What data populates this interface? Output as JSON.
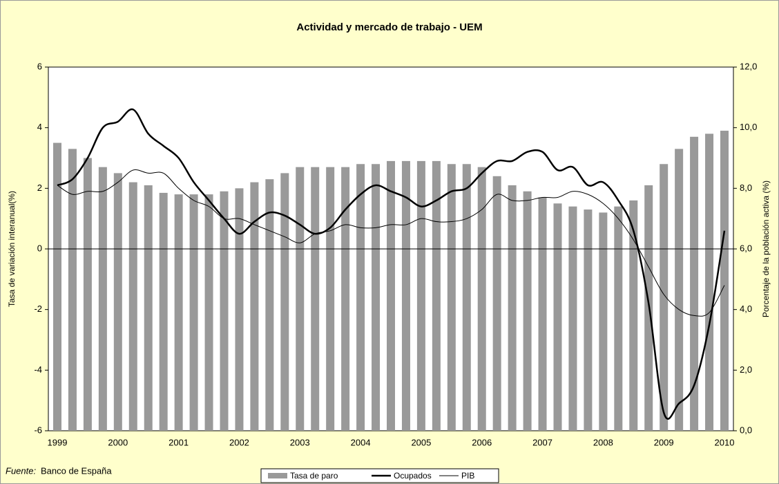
{
  "chart_data": {
    "type": "bar-line",
    "title": "Actividad y mercado de trabajo - UEM",
    "y_label": "Tasa de variación interanual(%)",
    "y2_label": "Porcentaje de la población activa (%)",
    "source_label": "Fuente:",
    "source": "Banco de España",
    "categories": [
      "1999",
      null,
      null,
      null,
      "2000",
      null,
      null,
      null,
      "2001",
      null,
      null,
      null,
      "2002",
      null,
      null,
      null,
      "2003",
      null,
      null,
      null,
      "2004",
      null,
      null,
      null,
      "2005",
      null,
      null,
      null,
      "2006",
      null,
      null,
      null,
      "2007",
      null,
      null,
      null,
      "2008",
      null,
      null,
      null,
      "2009",
      null,
      null,
      null,
      "2010"
    ],
    "ylim": [
      -6,
      6
    ],
    "yticks": [
      -6,
      -4,
      -2,
      0,
      2,
      4,
      6
    ],
    "y2lim": [
      0,
      12
    ],
    "y2ticks": [
      {
        "value": 0,
        "label": "0,0"
      },
      {
        "value": 2,
        "label": "2,0"
      },
      {
        "value": 4,
        "label": "4,0"
      },
      {
        "value": 6,
        "label": "6,0"
      },
      {
        "value": 8,
        "label": "8,0"
      },
      {
        "value": 10,
        "label": "10,0"
      },
      {
        "value": 12,
        "label": "12,0"
      }
    ],
    "series": [
      {
        "name": "Tasa de paro",
        "type": "bar",
        "axis": "y2",
        "color": "#999999",
        "values": [
          9.5,
          9.3,
          9.0,
          8.7,
          8.5,
          8.2,
          8.1,
          7.85,
          7.8,
          7.8,
          7.8,
          7.9,
          8.0,
          8.2,
          8.3,
          8.5,
          8.7,
          8.7,
          8.7,
          8.7,
          8.8,
          8.8,
          8.9,
          8.9,
          8.9,
          8.9,
          8.8,
          8.8,
          8.7,
          8.4,
          8.1,
          7.9,
          7.7,
          7.5,
          7.4,
          7.3,
          7.2,
          7.4,
          7.6,
          8.1,
          8.8,
          9.3,
          9.7,
          9.8,
          9.9
        ]
      },
      {
        "name": "Ocupados",
        "type": "line",
        "axis": "y",
        "color": "#000000",
        "width": 2.5,
        "values": [
          2.1,
          2.3,
          3.0,
          4.0,
          4.2,
          4.6,
          3.8,
          3.4,
          3.0,
          2.2,
          1.6,
          1.0,
          0.5,
          0.9,
          1.2,
          1.1,
          0.8,
          0.5,
          0.7,
          1.3,
          1.8,
          2.1,
          1.9,
          1.7,
          1.4,
          1.6,
          1.9,
          2.0,
          2.5,
          2.9,
          2.9,
          3.2,
          3.2,
          2.6,
          2.7,
          2.1,
          2.2,
          1.6,
          0.6,
          -1.8,
          -5.4,
          -5.1,
          -4.5,
          -2.5,
          0.6
        ]
      },
      {
        "name": "PIB",
        "type": "line",
        "axis": "y",
        "color": "#000000",
        "width": 1,
        "values": [
          2.1,
          1.8,
          1.9,
          1.9,
          2.2,
          2.6,
          2.5,
          2.5,
          2.0,
          1.6,
          1.4,
          1.0,
          1.0,
          0.8,
          0.6,
          0.4,
          0.2,
          0.5,
          0.6,
          0.8,
          0.7,
          0.7,
          0.8,
          0.8,
          1.0,
          0.9,
          0.9,
          1.0,
          1.3,
          1.8,
          1.6,
          1.6,
          1.7,
          1.7,
          1.9,
          1.8,
          1.5,
          1.0,
          0.3,
          -0.6,
          -1.5,
          -2.0,
          -2.2,
          -2.1,
          -1.2
        ]
      }
    ]
  }
}
